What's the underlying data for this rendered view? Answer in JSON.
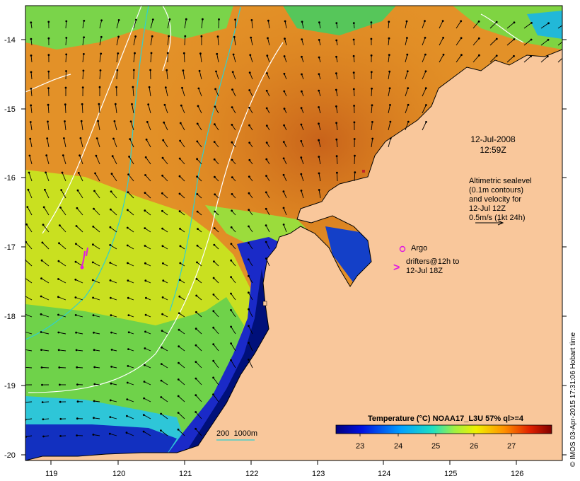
{
  "map": {
    "lon_ticks": [
      "119",
      "120",
      "121",
      "122",
      "123",
      "124",
      "125",
      "126"
    ],
    "lat_ticks": [
      "-14",
      "-15",
      "-16",
      "-17",
      "-18",
      "-19",
      "-20"
    ],
    "date_line1": "12-Jul-2008",
    "date_line2": "12:59Z",
    "altimetry_lines": [
      "Altimetric sealevel",
      "(0.1m contours)",
      "and velocity for",
      "12-Jul 12Z",
      "0.5m/s (1kt 24h)"
    ],
    "argo_label": "Argo",
    "drifter_lines": [
      "drifters@12h to",
      "12-Jul 18Z"
    ],
    "depth_label": "200  1000m",
    "colorbar": {
      "title": "Temperature (°C) NOAA17_L3U 57% ql>=4",
      "ticks": [
        "23",
        "24",
        "25",
        "26",
        "27"
      ]
    },
    "credit": "© IMOS 03-Apr-2015 17:31:06 Hobart time",
    "colors": {
      "land": "#f9c79b",
      "sst_warm": "#e08a1e",
      "sst_cool": "#1c2aa6",
      "argo_drifter": "#e01ce0",
      "contour_200": "#2fd0d0"
    }
  }
}
